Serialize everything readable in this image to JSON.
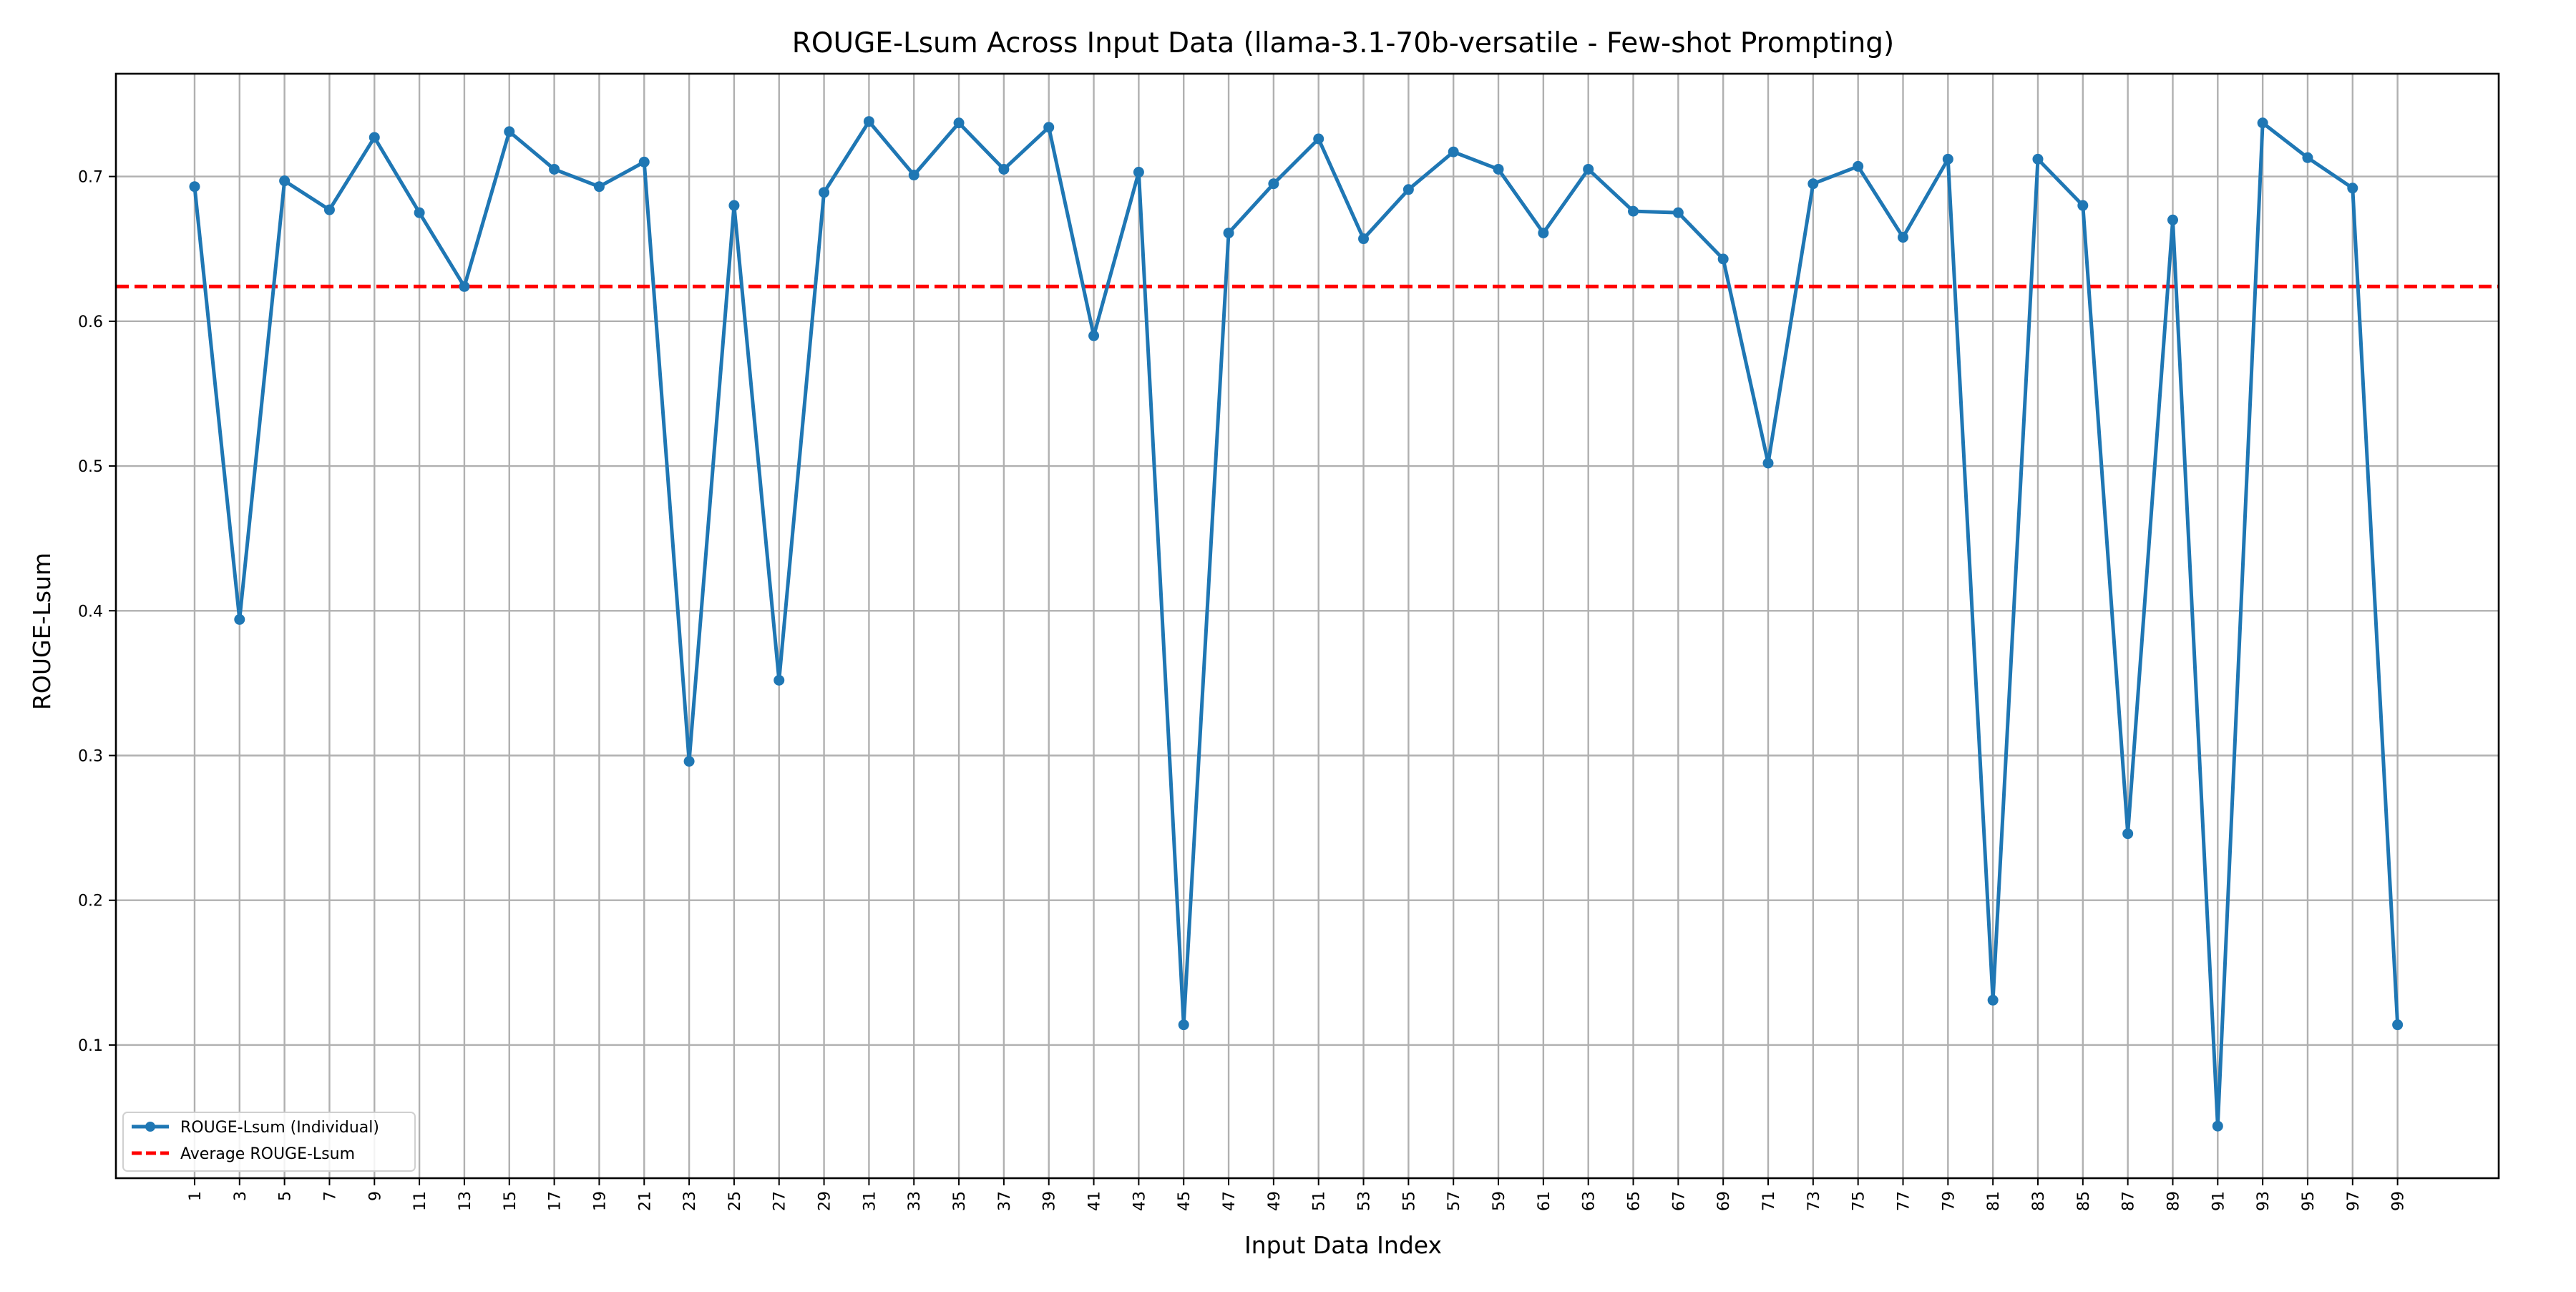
{
  "chart_data": {
    "type": "line",
    "title": "ROUGE-Lsum Across Input Data (llama-3.1-70b-versatile - Few-shot Prompting)",
    "xlabel": "Input Data Index",
    "ylabel": "ROUGE-Lsum",
    "xlim": [
      -2.5,
      103.5
    ],
    "ylim": [
      0.008,
      0.771
    ],
    "x_ticks": [
      1,
      3,
      5,
      7,
      9,
      11,
      13,
      15,
      17,
      19,
      21,
      23,
      25,
      27,
      29,
      31,
      33,
      35,
      37,
      39,
      41,
      43,
      45,
      47,
      49,
      51,
      53,
      55,
      57,
      59,
      61,
      63,
      65,
      67,
      69,
      71,
      73,
      75,
      77,
      79,
      81,
      83,
      85,
      87,
      89,
      91,
      93,
      95,
      97,
      99
    ],
    "y_ticks": [
      0.1,
      0.2,
      0.3,
      0.4,
      0.5,
      0.6,
      0.7
    ],
    "grid": true,
    "legend_position": "lower-left",
    "series": [
      {
        "name": "ROUGE-Lsum (Individual)",
        "color": "#1f77b4",
        "style": "line-with-markers",
        "x": [
          1,
          3,
          5,
          7,
          9,
          11,
          13,
          15,
          17,
          19,
          21,
          23,
          25,
          27,
          29,
          31,
          33,
          35,
          37,
          39,
          41,
          43,
          45,
          47,
          49,
          51,
          53,
          55,
          57,
          59,
          61,
          63,
          65,
          67,
          69,
          71,
          73,
          75,
          77,
          79,
          81,
          83,
          85,
          87,
          89,
          91,
          93,
          95,
          97,
          99
        ],
        "values": [
          0.693,
          0.394,
          0.697,
          0.677,
          0.727,
          0.675,
          0.624,
          0.731,
          0.705,
          0.693,
          0.71,
          0.296,
          0.68,
          0.352,
          0.689,
          0.738,
          0.701,
          0.737,
          0.705,
          0.734,
          0.59,
          0.703,
          0.114,
          0.661,
          0.695,
          0.726,
          0.657,
          0.691,
          0.717,
          0.705,
          0.661,
          0.705,
          0.676,
          0.675,
          0.643,
          0.502,
          0.695,
          0.707,
          0.658,
          0.712,
          0.131,
          0.712,
          0.68,
          0.246,
          0.67,
          0.044,
          0.737,
          0.713,
          0.692,
          0.114
        ]
      },
      {
        "name": "Average ROUGE-Lsum",
        "color": "#ff0000",
        "style": "dashed-horizontal",
        "value": 0.624
      }
    ]
  }
}
